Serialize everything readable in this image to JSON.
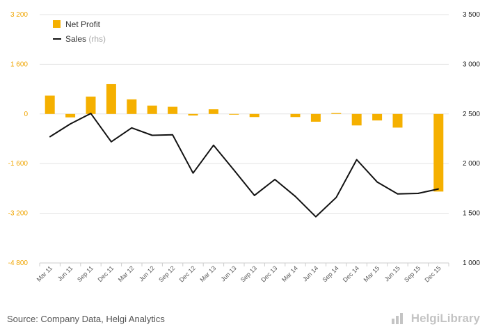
{
  "chart_data": {
    "type": "bar",
    "categories": [
      "Mar 11",
      "Jun 11",
      "Sep 11",
      "Dec 11",
      "Mar 12",
      "Jun 12",
      "Sep 12",
      "Dec 12",
      "Mar 13",
      "Jun 13",
      "Sep 13",
      "Dec 13",
      "Mar 14",
      "Jun 14",
      "Sep 14",
      "Dec 14",
      "Mar 15",
      "Jun 15",
      "Sep 15",
      "Dec 15"
    ],
    "series": [
      {
        "name": "Net Profit",
        "type": "bar",
        "axis": "left",
        "color": "#f5b000",
        "values": [
          590,
          -110,
          560,
          960,
          470,
          270,
          230,
          -50,
          150,
          -20,
          -100,
          0,
          -100,
          -250,
          30,
          -370,
          -210,
          -440,
          0,
          -2500
        ]
      },
      {
        "name": "Sales",
        "name_suffix": "(rhs)",
        "type": "line",
        "axis": "right",
        "color": "#111111",
        "values": [
          2270,
          2400,
          2505,
          2220,
          2360,
          2285,
          2290,
          1905,
          2185,
          1935,
          1680,
          1840,
          1670,
          1465,
          1660,
          2040,
          1815,
          1695,
          1700,
          1745
        ]
      }
    ],
    "y_left": {
      "min": -4800,
      "max": 3200,
      "ticks": [
        3200,
        1600,
        0,
        -1600,
        -3200,
        -4800
      ],
      "tick_labels": [
        "3 200",
        "1 600",
        "0",
        "-1 600",
        "-3 200",
        "-4 800"
      ]
    },
    "y_right": {
      "min": 1000,
      "max": 3500,
      "ticks": [
        3500,
        3000,
        2500,
        2000,
        1500,
        1000
      ],
      "tick_labels": [
        "3 500",
        "3 000",
        "2 500",
        "2 000",
        "1 500",
        "1 000"
      ]
    },
    "legend": {
      "position": "top-left"
    },
    "grid": true,
    "source": "Source: Company Data, Helgi Analytics",
    "brand": "HelgiLibrary"
  }
}
